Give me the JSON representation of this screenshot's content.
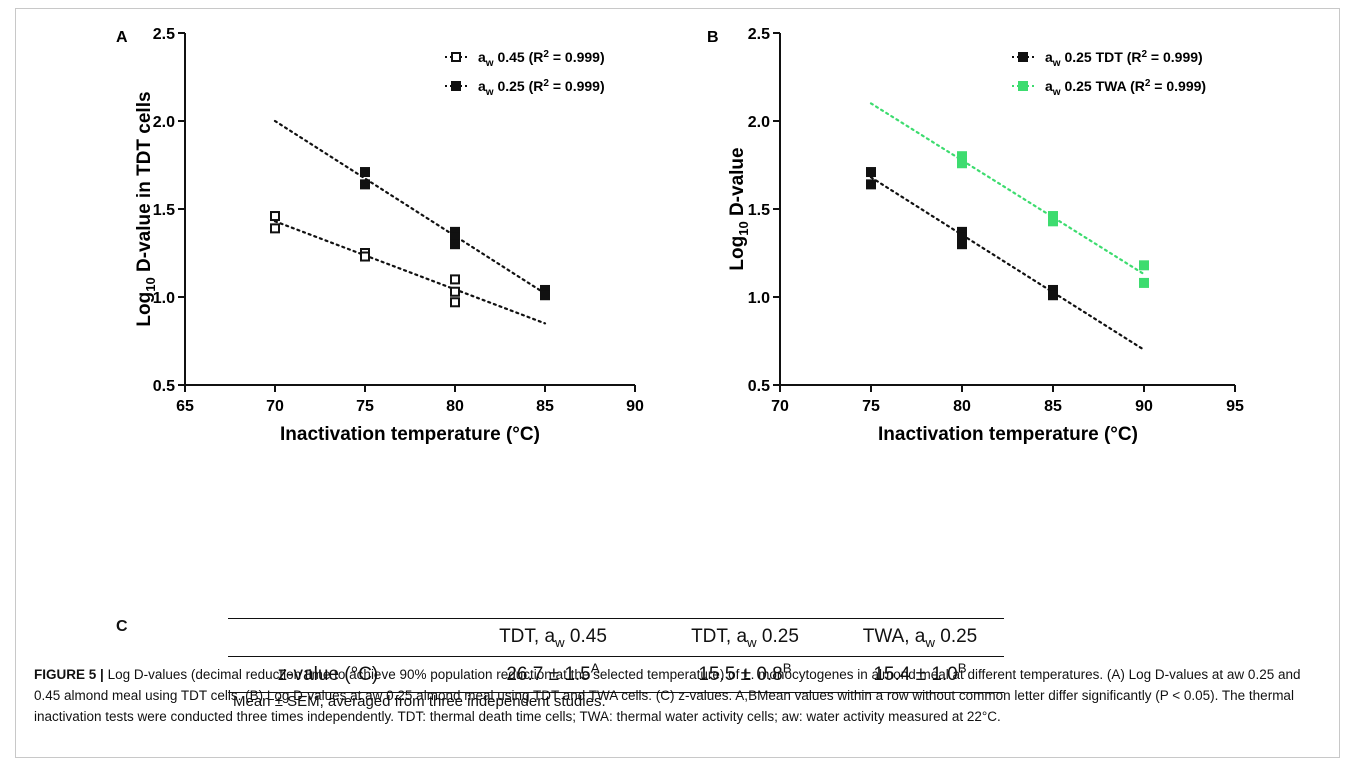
{
  "panels": {
    "a": {
      "letter": "A"
    },
    "b": {
      "letter": "B"
    },
    "c": {
      "letter": "C"
    }
  },
  "colors": {
    "black": "#111111",
    "green": "#3ddc6f"
  },
  "chart_data": [
    {
      "type": "scatter",
      "panel": "A",
      "xlabel": "Inactivation temperature (°C)",
      "ylabel": "Log10 D-value in TDT cells",
      "xlim": [
        65,
        90
      ],
      "ylim": [
        0.5,
        2.5
      ],
      "xticks": [
        "65",
        "70",
        "75",
        "80",
        "85",
        "90"
      ],
      "yticks": [
        "0.5",
        "1.0",
        "1.5",
        "2.0",
        "2.5"
      ],
      "legend_position": "top-right",
      "series": [
        {
          "name": "aw 0.45 (R2 = 0.999)",
          "marker": "open-square",
          "color": "#111111",
          "points": [
            [
              70,
              1.46
            ],
            [
              70,
              1.39
            ],
            [
              75,
              1.25
            ],
            [
              75,
              1.23
            ],
            [
              80,
              1.1
            ],
            [
              80,
              1.03
            ],
            [
              80,
              0.97
            ]
          ],
          "fit": [
            [
              70,
              1.43
            ],
            [
              85,
              0.85
            ]
          ]
        },
        {
          "name": "aw 0.25 (R2 = 0.999)",
          "marker": "filled-square",
          "color": "#111111",
          "points": [
            [
              75,
              1.71
            ],
            [
              75,
              1.64
            ],
            [
              80,
              1.37
            ],
            [
              80,
              1.34
            ],
            [
              80,
              1.3
            ],
            [
              85,
              1.04
            ],
            [
              85,
              1.01
            ]
          ],
          "fit": [
            [
              70,
              2.0
            ],
            [
              85,
              1.02
            ]
          ]
        }
      ]
    },
    {
      "type": "scatter",
      "panel": "B",
      "xlabel": "Inactivation temperature (°C)",
      "ylabel": "Log10 D-value",
      "xlim": [
        70,
        95
      ],
      "ylim": [
        0.5,
        2.5
      ],
      "xticks": [
        "70",
        "75",
        "80",
        "85",
        "90",
        "95"
      ],
      "yticks": [
        "0.5",
        "1.0",
        "1.5",
        "2.0",
        "2.5"
      ],
      "legend_position": "top-right",
      "series": [
        {
          "name": "aw 0.25 TDT (R2 = 0.999)",
          "marker": "filled-square",
          "color": "#111111",
          "points": [
            [
              75,
              1.71
            ],
            [
              75,
              1.64
            ],
            [
              80,
              1.37
            ],
            [
              80,
              1.34
            ],
            [
              80,
              1.3
            ],
            [
              85,
              1.04
            ],
            [
              85,
              1.01
            ]
          ],
          "fit": [
            [
              75,
              1.68
            ],
            [
              90,
              0.7
            ]
          ]
        },
        {
          "name": "aw 0.25 TWA (R2 = 0.999)",
          "marker": "filled-square",
          "color": "#3ddc6f",
          "points": [
            [
              80,
              1.8
            ],
            [
              80,
              1.76
            ],
            [
              85,
              1.46
            ],
            [
              85,
              1.43
            ],
            [
              90,
              1.18
            ],
            [
              90,
              1.08
            ]
          ],
          "fit": [
            [
              75,
              2.1
            ],
            [
              90,
              1.13
            ]
          ]
        }
      ]
    },
    {
      "type": "table",
      "panel": "C",
      "columns": [
        "",
        "TDT, aw 0.45",
        "TDT, aw 0.25",
        "TWA, aw 0.25"
      ],
      "rows": [
        [
          "z-value (°C)",
          "26.7 ± 1.5A",
          "15.5 ± 0.8B",
          "15.4 ± 1.0B"
        ]
      ],
      "note": "Mean ± SEM, averaged from three independent studies."
    }
  ],
  "table": {
    "headers": [
      {
        "base": "TDT, a",
        "sub": "w",
        "rest": " 0.45"
      },
      {
        "base": "TDT, a",
        "sub": "w",
        "rest": " 0.25"
      },
      {
        "base": "TWA, a",
        "sub": "w",
        "rest": " 0.25"
      }
    ],
    "row_label": "z-value (°C)",
    "cells": [
      {
        "value": "26.7 ± 1.5",
        "sup": "A"
      },
      {
        "value": "15.5 ± 0.8",
        "sup": "B"
      },
      {
        "value": "15.4 ± 1.0",
        "sup": "B"
      }
    ],
    "note": "Mean ± SEM, averaged from three independent studies."
  },
  "caption": {
    "figure_label": "FIGURE 5 |",
    "text": "Log D-values (decimal reduction time to achieve 90% population reduction at the selected temperature) of L. monocytogenes in almond meal at different temperatures. (A) Log D-values at aw 0.25 and 0.45 almond meal using TDT cells. (B) Log D-values at aw 0.25 almond meal using TDT and TWA cells. (C) z-values. A,BMean values within a row without common letter differ significantly (P < 0.05). The thermal inactivation tests were conducted three times independently. TDT: thermal death time cells; TWA: thermal water activity cells; aw: water activity measured at 22°C."
  }
}
